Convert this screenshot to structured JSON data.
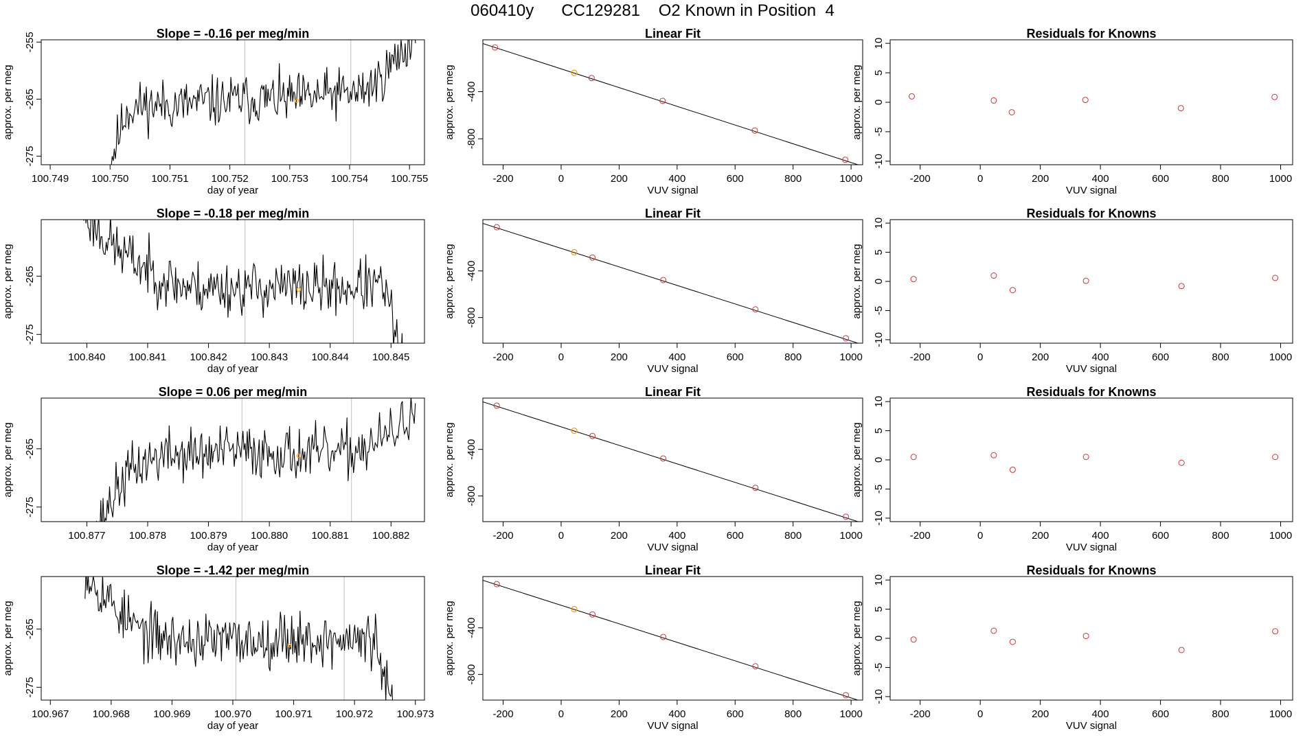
{
  "figure_title": {
    "date": "060410y",
    "cylinder": "CC129281",
    "description": "O2 Known in Position  4"
  },
  "colors": {
    "trace": "#000000",
    "marker_highlight": "#ffa500",
    "fit_point": "#cd3333",
    "residual_point": "#cd3333",
    "boundary_line": "#bebebe",
    "frame": "#000000"
  },
  "chart_data": [
    {
      "type": "line",
      "title": "Slope =  -0.16  per meg/min",
      "xlabel": "day of year",
      "ylabel": "approx. per meg",
      "xlim": [
        100.74885,
        100.75525
      ],
      "ylim": [
        -276.5,
        -254.6
      ],
      "xticks": [
        100.749,
        100.75,
        100.751,
        100.752,
        100.753,
        100.754,
        100.755
      ],
      "xtick_labels": [
        "100.749",
        "100.750",
        "100.751",
        "100.752",
        "100.753",
        "100.754",
        "100.755"
      ],
      "yticks": [
        -255,
        -265,
        -275
      ],
      "ytick_labels": [
        "-255",
        "-265",
        "-275"
      ],
      "x_start": 100.74995,
      "x_end": 100.7551,
      "trend": [
        -278,
        -267,
        -266,
        -266,
        -266,
        -265.5,
        -265.5,
        -265,
        -265,
        -265,
        -265,
        -264.5,
        -264,
        -264,
        -262,
        -258,
        -254
      ],
      "noise": 2.2,
      "seed": 11,
      "vlines": [
        100.75225,
        100.75402
      ],
      "marker": [
        100.75312,
        -265.3
      ]
    },
    {
      "type": "linear-fit",
      "title": "Linear Fit",
      "xlabel": "VUV signal",
      "ylabel": "approx. per meg",
      "xlim": [
        -270,
        1040
      ],
      "ylim": [
        -1020,
        40
      ],
      "xticks": [
        -200,
        0,
        200,
        400,
        600,
        800,
        1000
      ],
      "xtick_labels": [
        "-200",
        "0",
        "200",
        "400",
        "600",
        "800",
        "1000"
      ],
      "yticks": [
        -400,
        -800
      ],
      "ytick_labels": [
        "-400",
        "-800"
      ],
      "points": [
        [
          -228,
          -25
        ],
        [
          45,
          -240
        ],
        [
          105,
          -285
        ],
        [
          350,
          -478
        ],
        [
          668,
          -730
        ],
        [
          980,
          -978
        ]
      ],
      "highlight": [
        45,
        -240
      ],
      "line": [
        [
          -270,
          8
        ],
        [
          1040,
          -1033
        ]
      ]
    },
    {
      "type": "scatter",
      "title": "Residuals for Knowns",
      "xlabel": "VUV signal",
      "ylabel": "approx. per meg",
      "xlim": [
        -300,
        1040
      ],
      "ylim": [
        -10.6,
        10.6
      ],
      "xticks": [
        -200,
        0,
        200,
        400,
        600,
        800,
        1000
      ],
      "xtick_labels": [
        "-200",
        "0",
        "200",
        "400",
        "600",
        "800",
        "1000"
      ],
      "yticks": [
        10,
        5,
        0,
        -5,
        -10
      ],
      "ytick_labels": [
        "10",
        "5",
        "0",
        "-5",
        "-10"
      ],
      "points": [
        [
          -228,
          1.0
        ],
        [
          45,
          0.3
        ],
        [
          105,
          -1.7
        ],
        [
          350,
          0.4
        ],
        [
          668,
          -1.0
        ],
        [
          980,
          0.9
        ]
      ]
    },
    {
      "type": "line",
      "title": "Slope =  -0.18  per meg/min",
      "xlabel": "day of year",
      "ylabel": "approx. per meg",
      "xlim": [
        100.83925,
        100.84555
      ],
      "ylim": [
        -276.5,
        -255.3
      ],
      "xticks": [
        100.84,
        100.841,
        100.842,
        100.843,
        100.844,
        100.845
      ],
      "xtick_labels": [
        "100.840",
        "100.841",
        "100.842",
        "100.843",
        "100.844",
        "100.845"
      ],
      "yticks": [
        -265,
        -275
      ],
      "ytick_labels": [
        "-265",
        "-275"
      ],
      "x_start": 100.83995,
      "x_end": 100.8452,
      "trend": [
        -254,
        -258,
        -261,
        -263,
        -265,
        -266.5,
        -267,
        -267,
        -267,
        -267,
        -267,
        -267,
        -267,
        -267,
        -267,
        -266.5,
        -267,
        -280
      ],
      "noise": 2.3,
      "seed": 23,
      "vlines": [
        100.8426,
        100.84438
      ],
      "marker": [
        100.84348,
        -267.3
      ]
    },
    {
      "type": "linear-fit",
      "title": "Linear Fit",
      "xlabel": "VUV signal",
      "ylabel": "approx. per meg",
      "xlim": [
        -270,
        1040
      ],
      "ylim": [
        -1020,
        40
      ],
      "xticks": [
        -200,
        0,
        200,
        400,
        600,
        800,
        1000
      ],
      "xtick_labels": [
        "-200",
        "0",
        "200",
        "400",
        "600",
        "800",
        "1000"
      ],
      "yticks": [
        -400,
        -800
      ],
      "ytick_labels": [
        "-400",
        "-800"
      ],
      "points": [
        [
          -222,
          -25
        ],
        [
          45,
          -240
        ],
        [
          108,
          -285
        ],
        [
          352,
          -478
        ],
        [
          670,
          -730
        ],
        [
          982,
          -978
        ]
      ],
      "highlight": [
        45,
        -240
      ],
      "line": [
        [
          -270,
          8
        ],
        [
          1040,
          -1033
        ]
      ]
    },
    {
      "type": "scatter",
      "title": "Residuals for Knowns",
      "xlabel": "VUV signal",
      "ylabel": "approx. per meg",
      "xlim": [
        -300,
        1040
      ],
      "ylim": [
        -10.6,
        10.6
      ],
      "xticks": [
        -200,
        0,
        200,
        400,
        600,
        800,
        1000
      ],
      "xtick_labels": [
        "-200",
        "0",
        "200",
        "400",
        "600",
        "800",
        "1000"
      ],
      "yticks": [
        10,
        5,
        0,
        -5,
        -10
      ],
      "ytick_labels": [
        "10",
        "5",
        "0",
        "-5",
        "-10"
      ],
      "points": [
        [
          -222,
          0.4
        ],
        [
          45,
          1.0
        ],
        [
          108,
          -1.5
        ],
        [
          352,
          0.1
        ],
        [
          670,
          -0.8
        ],
        [
          982,
          0.6
        ]
      ]
    },
    {
      "type": "line",
      "title": "Slope =  0.06  per meg/min",
      "xlabel": "day of year",
      "ylabel": "approx. per meg",
      "xlim": [
        100.87625,
        100.88255
      ],
      "ylim": [
        -277.5,
        -256.3
      ],
      "xticks": [
        100.877,
        100.878,
        100.879,
        100.88,
        100.881,
        100.882
      ],
      "xtick_labels": [
        "100.877",
        "100.878",
        "100.879",
        "100.880",
        "100.881",
        "100.882"
      ],
      "yticks": [
        -265,
        -275
      ],
      "ytick_labels": [
        "-265",
        "-275"
      ],
      "x_start": 100.87707,
      "x_end": 100.8824,
      "trend": [
        -282,
        -274,
        -269,
        -267,
        -266,
        -266,
        -266,
        -265.5,
        -265.5,
        -265.5,
        -265.5,
        -266,
        -266,
        -266,
        -265,
        -264,
        -262,
        -258
      ],
      "noise": 2.3,
      "seed": 37,
      "vlines": [
        100.87955,
        100.88135
      ],
      "marker": [
        100.88048,
        -266.2
      ]
    },
    {
      "type": "linear-fit",
      "title": "Linear Fit",
      "xlabel": "VUV signal",
      "ylabel": "approx. per meg",
      "xlim": [
        -270,
        1040
      ],
      "ylim": [
        -1020,
        40
      ],
      "xticks": [
        -200,
        0,
        200,
        400,
        600,
        800,
        1000
      ],
      "xtick_labels": [
        "-200",
        "0",
        "200",
        "400",
        "600",
        "800",
        "1000"
      ],
      "yticks": [
        -400,
        -800
      ],
      "ytick_labels": [
        "-400",
        "-800"
      ],
      "points": [
        [
          -222,
          -25
        ],
        [
          45,
          -240
        ],
        [
          108,
          -285
        ],
        [
          352,
          -478
        ],
        [
          670,
          -730
        ],
        [
          982,
          -978
        ]
      ],
      "highlight": [
        45,
        -240
      ],
      "line": [
        [
          -270,
          8
        ],
        [
          1040,
          -1033
        ]
      ]
    },
    {
      "type": "scatter",
      "title": "Residuals for Knowns",
      "xlabel": "VUV signal",
      "ylabel": "approx. per meg",
      "xlim": [
        -300,
        1040
      ],
      "ylim": [
        -10.6,
        10.6
      ],
      "xticks": [
        -200,
        0,
        200,
        400,
        600,
        800,
        1000
      ],
      "xtick_labels": [
        "-200",
        "0",
        "200",
        "400",
        "600",
        "800",
        "1000"
      ],
      "yticks": [
        10,
        5,
        0,
        -5,
        -10
      ],
      "ytick_labels": [
        "10",
        "5",
        "0",
        "-5",
        "-10"
      ],
      "points": [
        [
          -222,
          0.5
        ],
        [
          45,
          0.8
        ],
        [
          108,
          -1.7
        ],
        [
          352,
          0.5
        ],
        [
          670,
          -0.5
        ],
        [
          982,
          0.5
        ]
      ]
    },
    {
      "type": "line",
      "title": "Slope =  -1.42  per meg/min",
      "xlabel": "day of year",
      "ylabel": "approx. per meg",
      "xlim": [
        100.96685,
        100.97315
      ],
      "ylim": [
        -277.2,
        -256.0
      ],
      "xticks": [
        100.967,
        100.968,
        100.969,
        100.97,
        100.971,
        100.972,
        100.973
      ],
      "xtick_labels": [
        "100.967",
        "100.968",
        "100.969",
        "100.970",
        "100.971",
        "100.972",
        "100.973"
      ],
      "yticks": [
        -265,
        -275
      ],
      "ytick_labels": [
        "-265",
        "-275"
      ],
      "x_start": 100.96757,
      "x_end": 100.97265,
      "trend": [
        -255,
        -259,
        -263,
        -265.5,
        -266.5,
        -267,
        -267,
        -267,
        -267,
        -267,
        -266.5,
        -266.5,
        -267,
        -267,
        -267,
        -267,
        -280
      ],
      "noise": 2.3,
      "seed": 53,
      "vlines": [
        100.97005,
        100.97183
      ],
      "marker": [
        100.97093,
        -267.8
      ]
    },
    {
      "type": "linear-fit",
      "title": "Linear Fit",
      "xlabel": "VUV signal",
      "ylabel": "approx. per meg",
      "xlim": [
        -270,
        1040
      ],
      "ylim": [
        -1020,
        40
      ],
      "xticks": [
        -200,
        0,
        200,
        400,
        600,
        800,
        1000
      ],
      "xtick_labels": [
        "-200",
        "0",
        "200",
        "400",
        "600",
        "800",
        "1000"
      ],
      "yticks": [
        -400,
        -800
      ],
      "ytick_labels": [
        "-400",
        "-800"
      ],
      "points": [
        [
          -222,
          -25
        ],
        [
          45,
          -240
        ],
        [
          108,
          -285
        ],
        [
          352,
          -478
        ],
        [
          670,
          -730
        ],
        [
          982,
          -978
        ]
      ],
      "highlight": [
        45,
        -240
      ],
      "line": [
        [
          -270,
          8
        ],
        [
          1040,
          -1033
        ]
      ]
    },
    {
      "type": "scatter",
      "title": "Residuals for Knowns",
      "xlabel": "VUV signal",
      "ylabel": "approx. per meg",
      "xlim": [
        -300,
        1040
      ],
      "ylim": [
        -10.6,
        10.6
      ],
      "xticks": [
        -200,
        0,
        200,
        400,
        600,
        800,
        1000
      ],
      "xtick_labels": [
        "-200",
        "0",
        "200",
        "400",
        "600",
        "800",
        "1000"
      ],
      "yticks": [
        10,
        5,
        0,
        -5,
        -10
      ],
      "ytick_labels": [
        "10",
        "5",
        "0",
        "-5",
        "-10"
      ],
      "points": [
        [
          -222,
          -0.2
        ],
        [
          45,
          1.3
        ],
        [
          108,
          -0.6
        ],
        [
          352,
          0.4
        ],
        [
          670,
          -2.0
        ],
        [
          982,
          1.2
        ]
      ]
    }
  ]
}
